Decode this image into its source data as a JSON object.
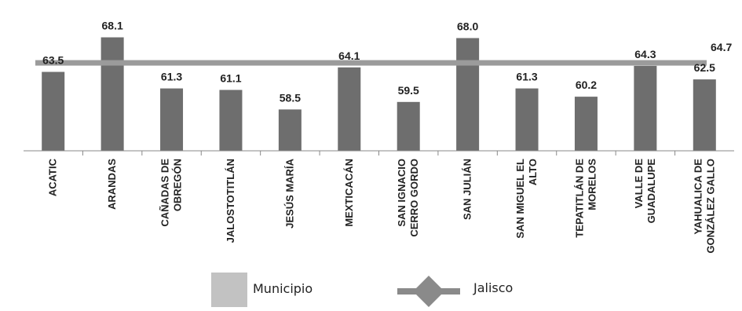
{
  "chart_data": {
    "type": "bar",
    "categories": [
      [
        "ACATIC"
      ],
      [
        "ARANDAS"
      ],
      [
        "CAÑADAS DE",
        "OBREGÓN"
      ],
      [
        "JALOSTOTITLÁN"
      ],
      [
        "JESÚS MARÍA"
      ],
      [
        "MEXTICACÁN"
      ],
      [
        "SAN IGNACIO",
        "CERRO GORDO"
      ],
      [
        "SAN JULIÁN"
      ],
      [
        "SAN MIGUEL EL",
        "ALTO"
      ],
      [
        "TEPATITLÁN DE",
        "MORELOS"
      ],
      [
        "VALLE DE",
        "GUADALUPE"
      ],
      [
        "YAHUALICA DE",
        "GONZÁLEZ GALLO"
      ]
    ],
    "series": [
      {
        "name": "Municipio",
        "values": [
          63.5,
          68.1,
          61.3,
          61.1,
          58.5,
          64.1,
          59.5,
          68.0,
          61.3,
          60.2,
          64.3,
          62.5
        ],
        "labels": [
          "63.5",
          "68.1",
          "61.3",
          "61.1",
          "58.5",
          "64.1",
          "59.5",
          "68.0",
          "61.3",
          "60.2",
          "64.3",
          "62.5"
        ],
        "color": "#6e6e6e"
      },
      {
        "name": "Jalisco",
        "value": 64.7,
        "label": "64.7",
        "color": "#9b9b9b"
      }
    ],
    "legend": {
      "position": "bottom",
      "items": [
        {
          "label": "Municipio",
          "color": "#c2c2c2",
          "marker": "square"
        },
        {
          "label": "Jalisco",
          "color": "#8a8a8a",
          "marker": "line-diamond"
        }
      ]
    },
    "title": "",
    "xlabel": "",
    "ylabel": "",
    "ylim": [
      53.0,
      69.2
    ],
    "grid": false
  }
}
